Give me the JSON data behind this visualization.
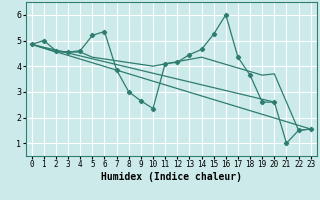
{
  "xlabel": "Humidex (Indice chaleur)",
  "xlim": [
    -0.5,
    23.5
  ],
  "ylim": [
    0.5,
    6.5
  ],
  "xticks": [
    0,
    1,
    2,
    3,
    4,
    5,
    6,
    7,
    8,
    9,
    10,
    11,
    12,
    13,
    14,
    15,
    16,
    17,
    18,
    19,
    20,
    21,
    22,
    23
  ],
  "yticks": [
    1,
    2,
    3,
    4,
    5,
    6
  ],
  "background_color": "#cceaea",
  "grid_color_major": "#ffffff",
  "grid_color_minor": "#f0aaaa",
  "line_color": "#2e7d6e",
  "lines": [
    {
      "x": [
        0,
        1,
        2,
        3,
        4,
        5,
        6,
        7,
        8,
        9,
        10,
        11,
        12,
        13,
        14,
        15,
        16,
        17,
        18,
        19,
        20,
        21,
        22,
        23
      ],
      "y": [
        4.85,
        5.0,
        4.6,
        4.55,
        4.6,
        5.2,
        5.35,
        3.85,
        3.0,
        2.65,
        2.35,
        4.1,
        4.15,
        4.45,
        4.65,
        5.25,
        6.0,
        4.35,
        3.65,
        2.6,
        2.6,
        1.0,
        1.5,
        1.55
      ],
      "marker": true
    },
    {
      "x": [
        0,
        2,
        3,
        4,
        5,
        10,
        14,
        19,
        20,
        21,
        22,
        23
      ],
      "y": [
        4.85,
        4.55,
        4.55,
        4.55,
        4.35,
        4.0,
        4.35,
        3.65,
        3.7,
        2.6,
        1.5,
        1.55
      ],
      "marker": false
    },
    {
      "x": [
        0,
        23
      ],
      "y": [
        4.85,
        1.55
      ],
      "marker": false
    },
    {
      "x": [
        0,
        20
      ],
      "y": [
        4.85,
        2.6
      ],
      "marker": false
    }
  ]
}
